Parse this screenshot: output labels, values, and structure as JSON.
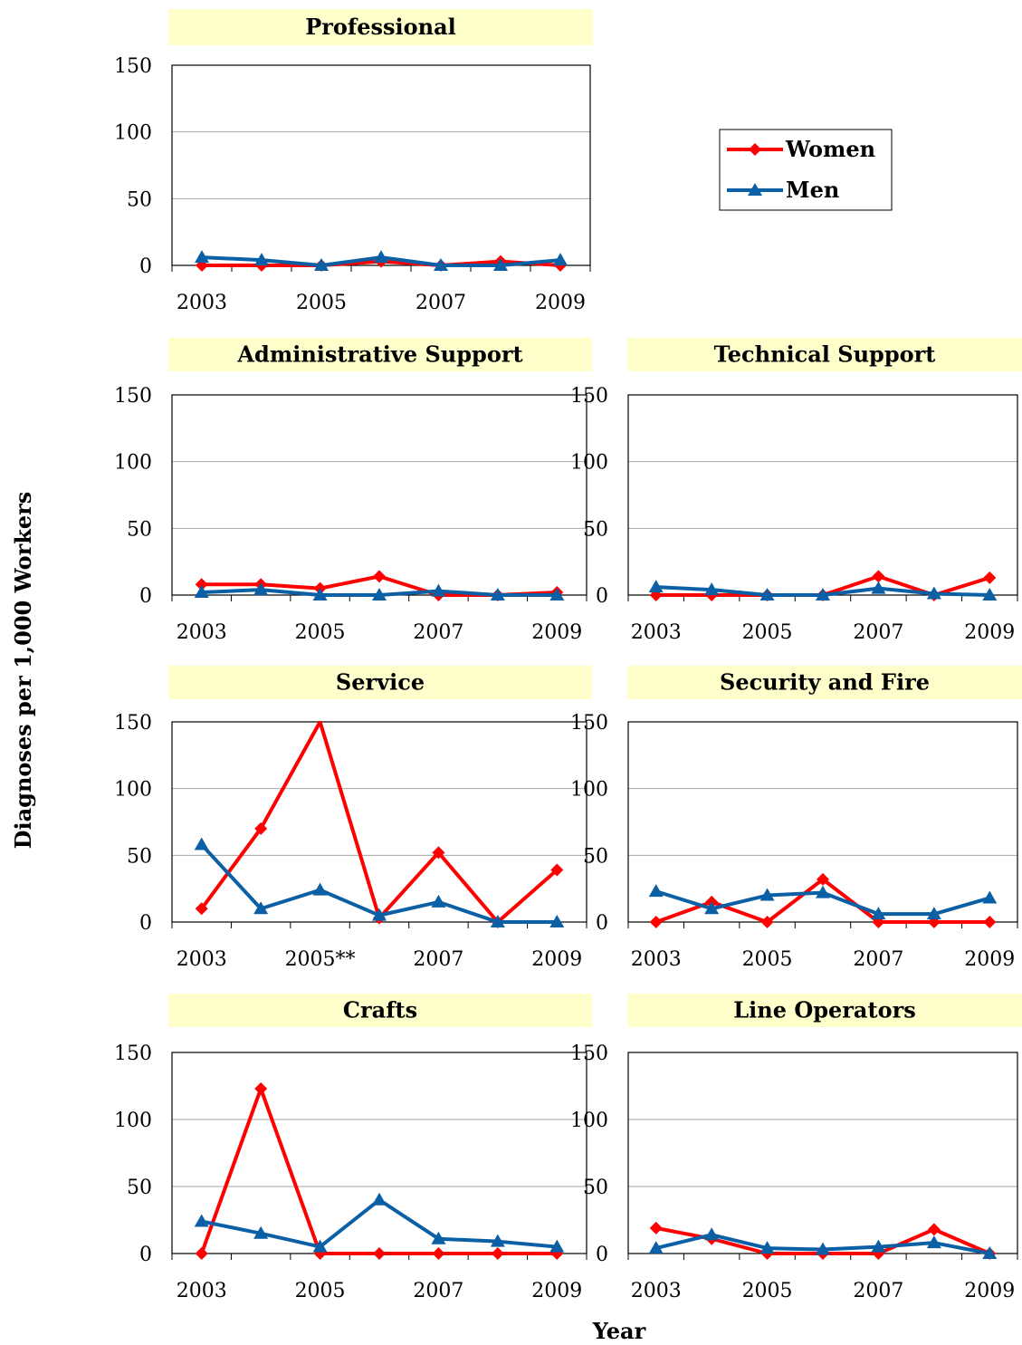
{
  "chart_data": [
    {
      "type": "line",
      "title": "Professional",
      "x": [
        2003,
        2004,
        2005,
        2006,
        2007,
        2008,
        2009
      ],
      "x_tick_labels": [
        "2003",
        "2005",
        "2007",
        "2009"
      ],
      "ylim": [
        0,
        150
      ],
      "y_ticks": [
        0,
        50,
        100,
        150
      ],
      "series": [
        {
          "name": "Women",
          "values": [
            0,
            0,
            0,
            3,
            0,
            3,
            0
          ]
        },
        {
          "name": "Men",
          "values": [
            6,
            4,
            0,
            6,
            0,
            0,
            4
          ]
        }
      ]
    },
    {
      "type": "line",
      "title": "Administrative Support",
      "x": [
        2003,
        2004,
        2005,
        2006,
        2007,
        2008,
        2009
      ],
      "x_tick_labels": [
        "2003",
        "2005",
        "2007",
        "2009"
      ],
      "ylim": [
        0,
        150
      ],
      "y_ticks": [
        0,
        50,
        100,
        150
      ],
      "series": [
        {
          "name": "Women",
          "values": [
            8,
            8,
            5,
            14,
            0,
            0,
            2
          ]
        },
        {
          "name": "Men",
          "values": [
            2,
            4,
            0,
            0,
            3,
            0,
            0
          ]
        }
      ]
    },
    {
      "type": "line",
      "title": "Technical Support",
      "x": [
        2003,
        2004,
        2005,
        2006,
        2007,
        2008,
        2009
      ],
      "x_tick_labels": [
        "2003",
        "2005",
        "2007",
        "2009"
      ],
      "ylim": [
        0,
        150
      ],
      "y_ticks": [
        0,
        50,
        100,
        150
      ],
      "series": [
        {
          "name": "Women",
          "values": [
            0,
            0,
            0,
            0,
            14,
            0,
            13
          ]
        },
        {
          "name": "Men",
          "values": [
            6,
            4,
            0,
            0,
            5,
            1,
            0
          ]
        }
      ]
    },
    {
      "type": "line",
      "title": "Service",
      "x": [
        2003,
        2004,
        2005,
        2006,
        2007,
        2008,
        2009
      ],
      "x_tick_labels": [
        "2003",
        "2005**",
        "2007",
        "2009"
      ],
      "ylim": [
        0,
        150
      ],
      "y_ticks": [
        0,
        50,
        100,
        150
      ],
      "series": [
        {
          "name": "Women",
          "values": [
            10,
            70,
            165,
            3,
            52,
            0,
            39
          ]
        },
        {
          "name": "Men",
          "values": [
            58,
            10,
            24,
            5,
            15,
            0,
            0
          ]
        }
      ]
    },
    {
      "type": "line",
      "title": "Security and Fire",
      "x": [
        2003,
        2004,
        2005,
        2006,
        2007,
        2008,
        2009
      ],
      "x_tick_labels": [
        "2003",
        "2005",
        "2007",
        "2009"
      ],
      "ylim": [
        0,
        150
      ],
      "y_ticks": [
        0,
        50,
        100,
        150
      ],
      "series": [
        {
          "name": "Women",
          "values": [
            0,
            15,
            0,
            32,
            0,
            0,
            0
          ]
        },
        {
          "name": "Men",
          "values": [
            23,
            10,
            20,
            22,
            6,
            6,
            18
          ]
        }
      ]
    },
    {
      "type": "line",
      "title": "Crafts",
      "x": [
        2003,
        2004,
        2005,
        2006,
        2007,
        2008,
        2009
      ],
      "x_tick_labels": [
        "2003",
        "2005",
        "2007",
        "2009"
      ],
      "ylim": [
        0,
        150
      ],
      "y_ticks": [
        0,
        50,
        100,
        150
      ],
      "series": [
        {
          "name": "Women",
          "values": [
            0,
            123,
            0,
            0,
            0,
            0,
            0
          ]
        },
        {
          "name": "Men",
          "values": [
            24,
            15,
            5,
            40,
            11,
            9,
            5
          ]
        }
      ]
    },
    {
      "type": "line",
      "title": "Line Operators",
      "x": [
        2003,
        2004,
        2005,
        2006,
        2007,
        2008,
        2009
      ],
      "x_tick_labels": [
        "2003",
        "2005",
        "2007",
        "2009"
      ],
      "ylim": [
        0,
        150
      ],
      "y_ticks": [
        0,
        50,
        100,
        150
      ],
      "series": [
        {
          "name": "Women",
          "values": [
            19,
            11,
            0,
            0,
            0,
            18,
            0
          ]
        },
        {
          "name": "Men",
          "values": [
            4,
            14,
            4,
            3,
            5,
            8,
            0
          ]
        }
      ]
    }
  ],
  "legend": {
    "items": [
      {
        "label": "Women",
        "color": "#ff0000",
        "marker": "diamond"
      },
      {
        "label": "Men",
        "color": "#0b5fa5",
        "marker": "triangle"
      }
    ]
  },
  "ylabel": "Diagnoses per 1,000 Workers",
  "xlabel": "Year",
  "colors": {
    "women": "#ff0000",
    "men": "#0b5fa5",
    "title_bg": "#ffffcc",
    "grid": "#a6a6a6"
  }
}
